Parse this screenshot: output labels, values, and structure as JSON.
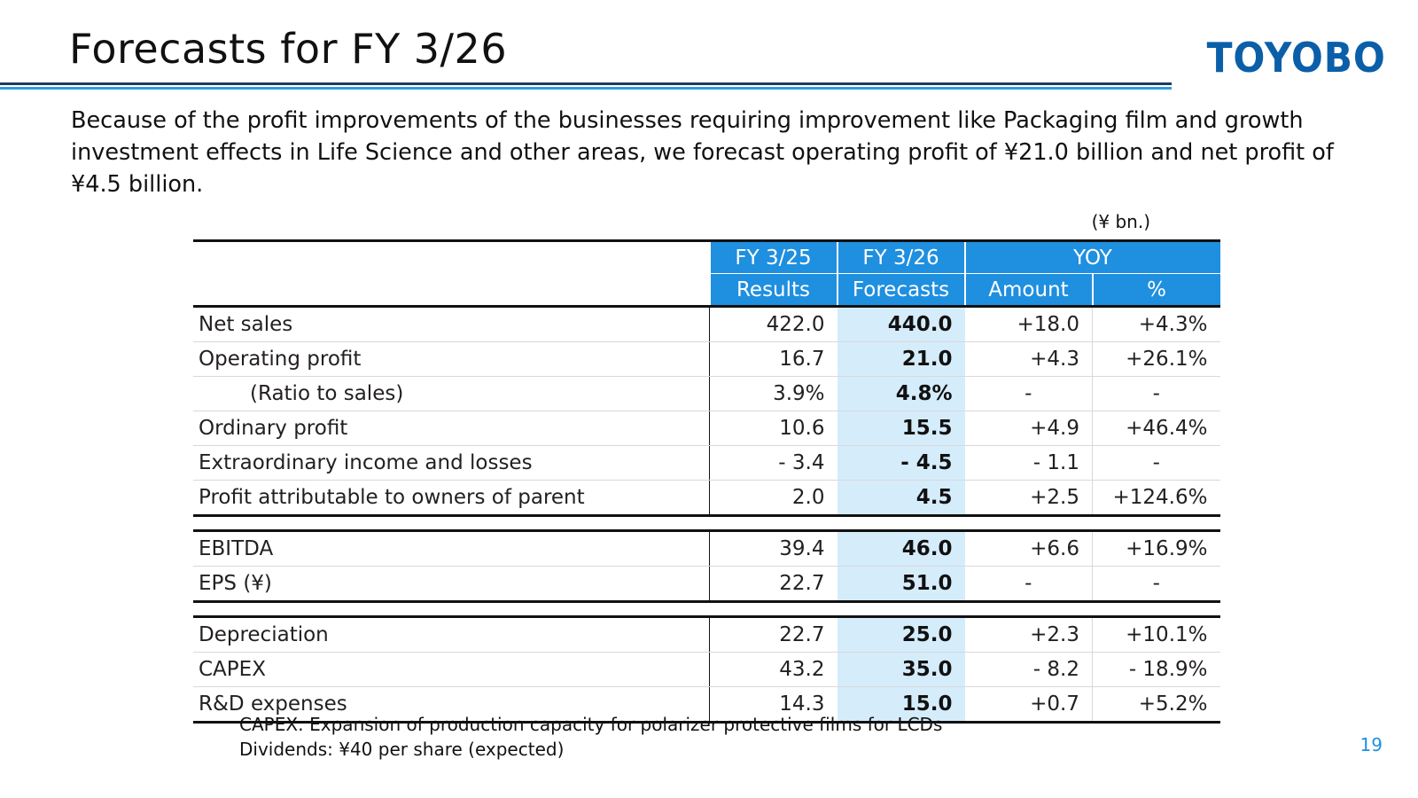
{
  "title": "Forecasts for FY 3/26",
  "logo": "TOYOBO",
  "intro": "Because of the profit improvements of the businesses requiring improvement like Packaging film and growth investment effects in Life Science and other areas, we forecast operating profit of ¥21.0 billion and net profit of ¥4.5 billion.",
  "unit": "(¥ bn.)",
  "table": {
    "headers": {
      "fy25_top": "FY 3/25",
      "fy25_sub": "Results",
      "fy26_top": "FY 3/26",
      "fy26_sub": "Forecasts",
      "yoy": "YOY",
      "amount": "Amount",
      "pct": "%"
    },
    "block1": [
      {
        "label": "Net sales",
        "fy25": "422.0",
        "fy26": "440.0",
        "amount": "+18.0",
        "pct": "+4.3%"
      },
      {
        "label": "Operating profit",
        "fy25": "16.7",
        "fy26": "21.0",
        "amount": "+4.3",
        "pct": "+26.1%"
      },
      {
        "label": "(Ratio to sales)",
        "fy25": "3.9%",
        "fy26": "4.8%",
        "amount": "-",
        "pct": "-"
      },
      {
        "label": "Ordinary profit",
        "fy25": "10.6",
        "fy26": "15.5",
        "amount": "+4.9",
        "pct": "+46.4%"
      },
      {
        "label": "Extraordinary income and losses",
        "fy25": "- 3.4",
        "fy26": "- 4.5",
        "amount": "- 1.1",
        "pct": "-"
      },
      {
        "label": "Profit attributable to owners of parent",
        "fy25": "2.0",
        "fy26": "4.5",
        "amount": "+2.5",
        "pct": "+124.6%"
      }
    ],
    "block2": [
      {
        "label": "EBITDA",
        "fy25": "39.4",
        "fy26": "46.0",
        "amount": "+6.6",
        "pct": "+16.9%"
      },
      {
        "label": "EPS (¥)",
        "fy25": "22.7",
        "fy26": "51.0",
        "amount": "-",
        "pct": "-"
      }
    ],
    "block3": [
      {
        "label": "Depreciation",
        "fy25": "22.7",
        "fy26": "25.0",
        "amount": "+2.3",
        "pct": "+10.1%"
      },
      {
        "label": "CAPEX",
        "fy25": "43.2",
        "fy26": "35.0",
        "amount": "- 8.2",
        "pct": "- 18.9%"
      },
      {
        "label": "R&D expenses",
        "fy25": "14.3",
        "fy26": "15.0",
        "amount": "+0.7",
        "pct": "+5.2%"
      }
    ]
  },
  "notes": [
    "CAPEX: Expansion of production capacity for polarizer protective films for LCDs",
    "Dividends: ¥40 per share (expected)"
  ],
  "page_number": "19"
}
